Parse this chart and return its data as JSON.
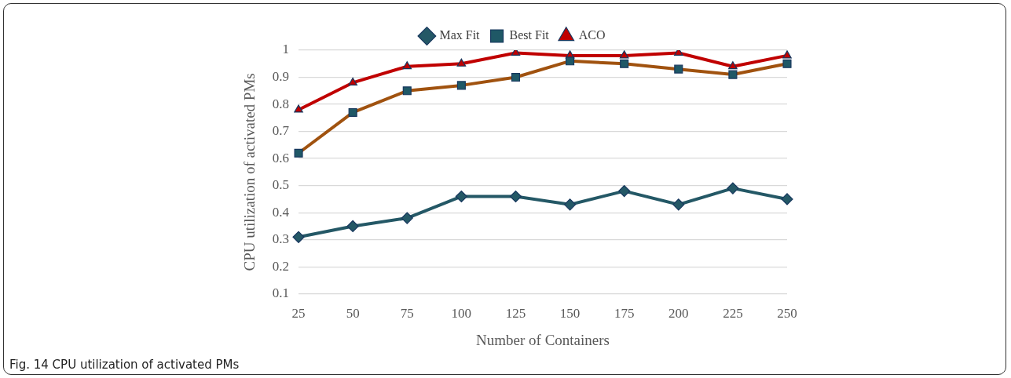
{
  "chart_data": {
    "type": "line",
    "xlabel": "Number of Containers",
    "ylabel": "CPU utilization of activated PMs",
    "categories": [
      "25",
      "50",
      "75",
      "100",
      "125",
      "150",
      "175",
      "200",
      "225",
      "250"
    ],
    "series": [
      {
        "name": "Max Fit",
        "color": "#245866",
        "marker": "diamond",
        "values": [
          0.31,
          0.35,
          0.38,
          0.46,
          0.46,
          0.43,
          0.48,
          0.43,
          0.49,
          0.45
        ]
      },
      {
        "name": "Best Fit",
        "color": "#a0520f",
        "marker": "square",
        "colors": [
          "#1f5866",
          "#1f5866",
          "#1f5866",
          "#1f5866",
          "#1f5866",
          "#1f5866",
          "#1f5866",
          "#1f5866",
          "#1f5866",
          "#1f5866"
        ],
        "values": [
          0.62,
          0.77,
          0.85,
          0.87,
          0.9,
          0.96,
          0.95,
          0.93,
          0.91,
          0.95
        ]
      },
      {
        "name": "ACO",
        "color": "#c00000",
        "marker": "triangle",
        "values": [
          0.78,
          0.88,
          0.94,
          0.95,
          0.99,
          0.98,
          0.98,
          0.99,
          0.94,
          0.98
        ]
      }
    ],
    "ylim": [
      0.1,
      1
    ],
    "yticks": [
      0.1,
      0.2,
      0.3,
      0.4,
      0.5,
      0.6,
      0.7,
      0.8,
      0.9,
      1
    ],
    "grid": "y",
    "legend": "top",
    "annotations": [
      "Fig. 14 CPU utilization of activated PMs"
    ]
  }
}
